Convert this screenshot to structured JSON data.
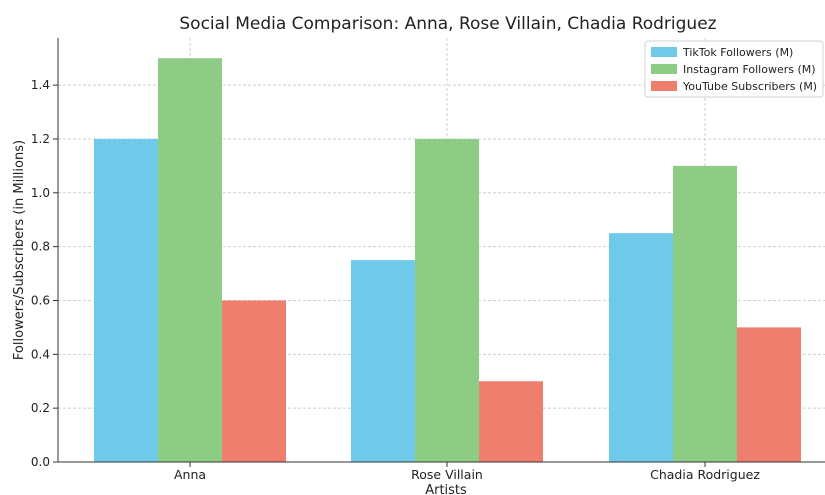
{
  "chart_data": {
    "type": "bar",
    "title": "Social Media Comparison: Anna, Rose Villain, Chadia Rodriguez",
    "xlabel": "Artists",
    "ylabel": "Followers/Subscribers (in Millions)",
    "categories": [
      "Anna",
      "Rose Villain",
      "Chadia Rodriguez"
    ],
    "series": [
      {
        "name": "TikTok Followers (M)",
        "values": [
          1.2,
          0.75,
          0.85
        ],
        "color": "#6fc9e8"
      },
      {
        "name": "Instagram Followers (M)",
        "values": [
          1.5,
          1.2,
          1.1
        ],
        "color": "#8ccc84"
      },
      {
        "name": "YouTube Subscribers (M)",
        "values": [
          0.6,
          0.3,
          0.5
        ],
        "color": "#f07e6e"
      }
    ],
    "ylim": [
      0,
      1.575
    ],
    "yticks": [
      0.0,
      0.2,
      0.4,
      0.6,
      0.8,
      1.0,
      1.2,
      1.4
    ],
    "grid": true,
    "legend_position": "top-right"
  }
}
